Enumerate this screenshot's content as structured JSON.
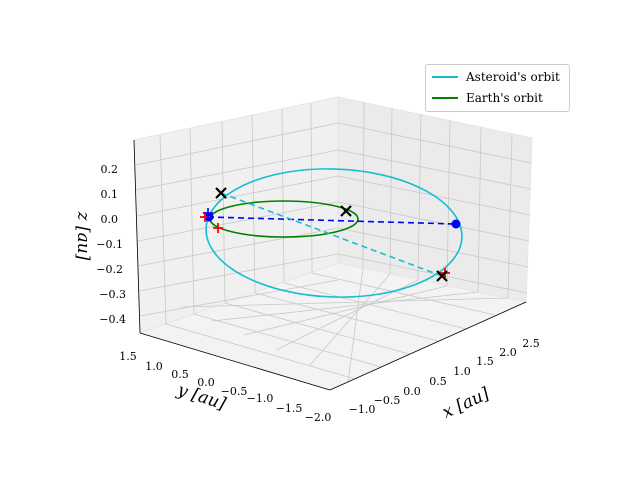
{
  "chart_data": {
    "type": "line",
    "projection": "3d",
    "xlabel": "x [au]",
    "ylabel": "y [au]",
    "zlabel": "z [au]",
    "x_ticks": [
      "−1.0",
      "−0.5",
      "0.0",
      "0.5",
      "1.0",
      "1.5",
      "2.0",
      "2.5"
    ],
    "y_ticks": [
      "1.5",
      "1.0",
      "0.5",
      "0.0",
      "−0.5",
      "−1.0",
      "−1.5",
      "−2.0"
    ],
    "z_ticks": [
      "0.2",
      "0.1",
      "0.0",
      "−0.1",
      "−0.2",
      "−0.3",
      "−0.4"
    ],
    "series": [
      {
        "name": "Asteroid's orbit",
        "color": "#17becf",
        "style": "solid"
      },
      {
        "name": "Earth's orbit",
        "color": "#008000",
        "style": "solid"
      }
    ],
    "connectors": [
      {
        "name": "blue-dashed-connector",
        "color": "#0000ff",
        "style": "dashed"
      },
      {
        "name": "cyan-dashed-connector",
        "color": "#17becf",
        "style": "dashed"
      }
    ],
    "markers": [
      {
        "name": "black-x",
        "color": "#000000",
        "symbol": "x",
        "count": 3
      },
      {
        "name": "blue-dot",
        "color": "#0000ff",
        "symbol": "dot",
        "count": 2
      },
      {
        "name": "red-plus",
        "color": "#ff0000",
        "symbol": "+",
        "count": 3
      }
    ],
    "legend": {
      "position": "top-right",
      "entries": [
        "Asteroid's orbit",
        "Earth's orbit"
      ]
    }
  }
}
